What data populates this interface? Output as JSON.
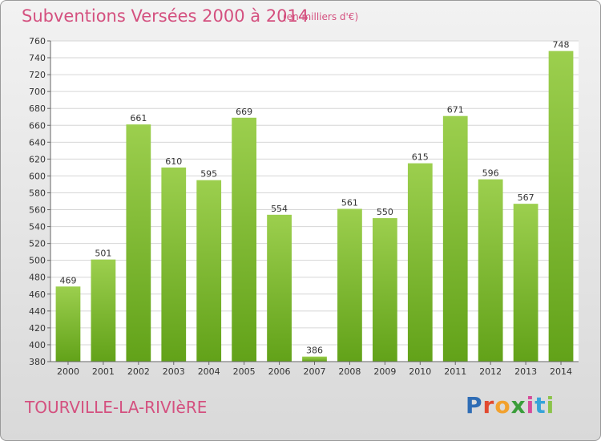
{
  "header": {
    "title": "Subventions Versées 2000 à 2014",
    "subtitle": "(en milliers d'€)"
  },
  "footer": {
    "commune": "TOURVILLE-LA-RIVIèRE",
    "logo_text": "Proxiti",
    "logo_colors": [
      "#2f6db5",
      "#e2492f",
      "#f2a12e",
      "#3a9d3a",
      "#d64b9a",
      "#36a3d9",
      "#8bc34a"
    ]
  },
  "colors": {
    "bar_top": "#9ccf4e",
    "bar_bottom": "#62a219",
    "text_accent": "#d4507f"
  },
  "chart_data": {
    "type": "bar",
    "title": "Subventions Versées 2000 à 2014",
    "xlabel": "",
    "ylabel": "",
    "categories": [
      "2000",
      "2001",
      "2002",
      "2003",
      "2004",
      "2005",
      "2006",
      "2007",
      "2008",
      "2009",
      "2010",
      "2011",
      "2012",
      "2013",
      "2014"
    ],
    "values": [
      469,
      501,
      661,
      610,
      595,
      669,
      554,
      386,
      561,
      550,
      615,
      671,
      596,
      567,
      748
    ],
    "ylim": [
      380,
      760
    ],
    "yticks": [
      380,
      400,
      420,
      440,
      460,
      480,
      500,
      520,
      540,
      560,
      580,
      600,
      620,
      640,
      660,
      680,
      700,
      720,
      740,
      760
    ],
    "grid": true
  }
}
